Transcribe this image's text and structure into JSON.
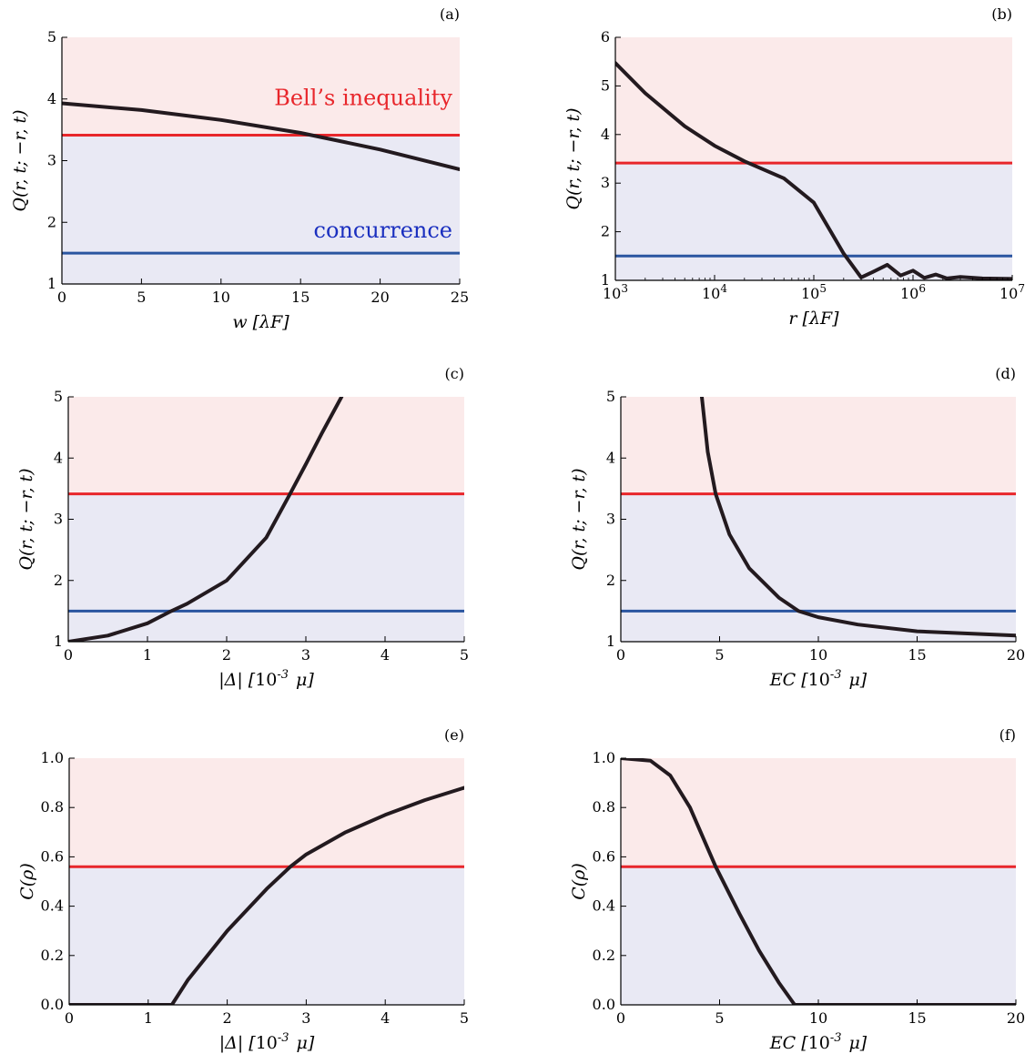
{
  "chart_data": [
    {
      "panel": "(a)",
      "type": "line",
      "xlabel": "w [λF]",
      "ylabel": "Q(r, t; −r, t)",
      "xlim": [
        0,
        25
      ],
      "ylim": [
        1,
        5
      ],
      "xscale": "linear",
      "x_ticks": [
        "0",
        "5",
        "10",
        "15",
        "20",
        "25"
      ],
      "y_ticks": [
        "1",
        "2",
        "3",
        "4",
        "5"
      ],
      "regions": [
        {
          "from": 1,
          "to": 3.414,
          "color": "#e9e9f4"
        },
        {
          "from": 3.414,
          "to": 5,
          "color": "#fbeaea"
        }
      ],
      "hlines": [
        {
          "y": 3.414,
          "color": "#e8262b"
        },
        {
          "y": 1.5,
          "color": "#2a55a0"
        }
      ],
      "annotations": [
        {
          "text": "Bell’s inequality",
          "color": "#e8262b",
          "x": 25,
          "y": 3.9
        },
        {
          "text": "concurrence",
          "color": "#1a2fbf",
          "x": 25,
          "y": 1.75
        }
      ],
      "series": [
        {
          "x": [
            0,
            5,
            10,
            15,
            20,
            25
          ],
          "y": [
            3.93,
            3.82,
            3.66,
            3.45,
            3.18,
            2.86
          ]
        }
      ]
    },
    {
      "panel": "(b)",
      "type": "line",
      "xlabel": "r [λF]",
      "ylabel": "Q(r, t; −r, t)",
      "xlim": [
        1000,
        10000000
      ],
      "ylim": [
        1,
        6
      ],
      "xscale": "log",
      "x_ticks": [
        "10^3",
        "10^4",
        "10^5",
        "10^6",
        "10^7"
      ],
      "y_ticks": [
        "1",
        "2",
        "3",
        "4",
        "5",
        "6"
      ],
      "regions": [
        {
          "from": 1,
          "to": 3.414,
          "color": "#e9e9f4"
        },
        {
          "from": 3.414,
          "to": 6,
          "color": "#fbeaea"
        }
      ],
      "hlines": [
        {
          "y": 3.414,
          "color": "#e8262b"
        },
        {
          "y": 1.5,
          "color": "#2a55a0"
        }
      ],
      "series": [
        {
          "x": [
            1000,
            2000,
            5000,
            10000,
            20000,
            50000,
            100000,
            200000,
            300000,
            400000,
            550000,
            750000,
            1000000,
            1300000,
            1700000,
            2200000,
            3000000,
            5000000,
            10000000
          ],
          "y": [
            5.47,
            4.85,
            4.17,
            3.77,
            3.45,
            3.1,
            2.6,
            1.55,
            1.06,
            1.18,
            1.32,
            1.1,
            1.2,
            1.05,
            1.12,
            1.04,
            1.07,
            1.04,
            1.03
          ]
        }
      ]
    },
    {
      "panel": "(c)",
      "type": "line",
      "xlabel": "|Δ| [10^-3 μ]",
      "ylabel": "Q(r, t; −r, t)",
      "xlim": [
        0,
        5
      ],
      "ylim": [
        1,
        5
      ],
      "xscale": "linear",
      "x_ticks": [
        "0",
        "1",
        "2",
        "3",
        "4",
        "5"
      ],
      "y_ticks": [
        "1",
        "2",
        "3",
        "4",
        "5"
      ],
      "regions": [
        {
          "from": 1,
          "to": 3.414,
          "color": "#e9e9f4"
        },
        {
          "from": 3.414,
          "to": 5,
          "color": "#fbeaea"
        }
      ],
      "hlines": [
        {
          "y": 3.414,
          "color": "#e8262b"
        },
        {
          "y": 1.5,
          "color": "#2a55a0"
        }
      ],
      "series": [
        {
          "x": [
            0,
            0.5,
            1,
            1.3,
            1.5,
            2,
            2.5,
            2.8,
            3,
            3.2,
            3.45
          ],
          "y": [
            1.0,
            1.1,
            1.3,
            1.5,
            1.62,
            2.0,
            2.7,
            3.414,
            3.9,
            4.4,
            5.0
          ]
        }
      ]
    },
    {
      "panel": "(d)",
      "type": "line",
      "xlabel": "EC [10^-3 μ]",
      "ylabel": "Q(r, t; −r, t)",
      "xlim": [
        0,
        20
      ],
      "ylim": [
        1,
        5
      ],
      "xscale": "linear",
      "x_ticks": [
        "0",
        "5",
        "10",
        "15",
        "20"
      ],
      "y_ticks": [
        "1",
        "2",
        "3",
        "4",
        "5"
      ],
      "regions": [
        {
          "from": 1,
          "to": 3.414,
          "color": "#e9e9f4"
        },
        {
          "from": 3.414,
          "to": 5,
          "color": "#fbeaea"
        }
      ],
      "hlines": [
        {
          "y": 3.414,
          "color": "#e8262b"
        },
        {
          "y": 1.5,
          "color": "#2a55a0"
        }
      ],
      "series": [
        {
          "x": [
            4.1,
            4.4,
            4.8,
            5.5,
            6.5,
            8,
            9,
            10,
            12,
            15,
            20
          ],
          "y": [
            5.0,
            4.1,
            3.414,
            2.75,
            2.2,
            1.72,
            1.5,
            1.4,
            1.28,
            1.17,
            1.1
          ]
        }
      ]
    },
    {
      "panel": "(e)",
      "type": "line",
      "xlabel": "|Δ| [10^-3 μ]",
      "ylabel": "C(ρ)",
      "xlim": [
        0,
        5
      ],
      "ylim": [
        0,
        1
      ],
      "xscale": "linear",
      "x_ticks": [
        "0",
        "1",
        "2",
        "3",
        "4",
        "5"
      ],
      "y_ticks": [
        "0.0",
        "0.2",
        "0.4",
        "0.6",
        "0.8",
        "1.0"
      ],
      "regions": [
        {
          "from": 0,
          "to": 0.56,
          "color": "#e9e9f4"
        },
        {
          "from": 0.56,
          "to": 1,
          "color": "#fbeaea"
        }
      ],
      "hlines": [
        {
          "y": 0.56,
          "color": "#e8262b"
        }
      ],
      "series": [
        {
          "x": [
            0,
            1.3,
            1.5,
            2,
            2.5,
            2.8,
            3,
            3.5,
            4,
            4.5,
            5
          ],
          "y": [
            0,
            0,
            0.1,
            0.3,
            0.47,
            0.56,
            0.61,
            0.7,
            0.77,
            0.83,
            0.88
          ]
        }
      ]
    },
    {
      "panel": "(f)",
      "type": "line",
      "xlabel": "EC [10^-3 μ]",
      "ylabel": "C(ρ)",
      "xlim": [
        0,
        20
      ],
      "ylim": [
        0,
        1
      ],
      "xscale": "linear",
      "x_ticks": [
        "0",
        "5",
        "10",
        "15",
        "20"
      ],
      "y_ticks": [
        "0.0",
        "0.2",
        "0.4",
        "0.6",
        "0.8",
        "1.0"
      ],
      "regions": [
        {
          "from": 0,
          "to": 0.56,
          "color": "#e9e9f4"
        },
        {
          "from": 0.56,
          "to": 1,
          "color": "#fbeaea"
        }
      ],
      "hlines": [
        {
          "y": 0.56,
          "color": "#e8262b"
        }
      ],
      "series": [
        {
          "x": [
            0,
            1.5,
            2.5,
            3.5,
            4.8,
            6,
            7,
            8,
            8.8,
            10,
            15,
            20
          ],
          "y": [
            1.0,
            0.99,
            0.93,
            0.8,
            0.56,
            0.37,
            0.22,
            0.09,
            0,
            0,
            0,
            0
          ]
        }
      ]
    }
  ]
}
